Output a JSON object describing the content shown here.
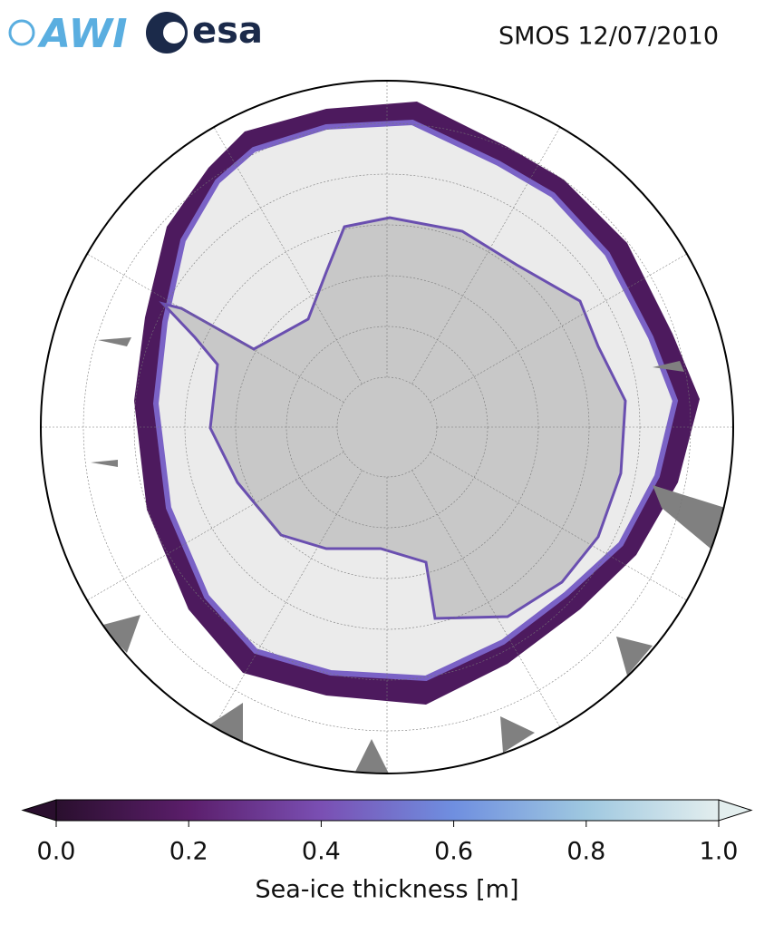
{
  "header": {
    "logos": [
      "AWI",
      "esa"
    ],
    "title": "SMOS 12/07/2010"
  },
  "colorbar": {
    "label": "Sea-ice thickness [m]",
    "lim": [
      0,
      1
    ],
    "ticks": [
      {
        "value": 0,
        "label": "0.0"
      },
      {
        "value": 0.2,
        "label": "0.2"
      },
      {
        "value": 0.4,
        "label": "0.4"
      },
      {
        "value": 0.6,
        "label": "0.6"
      },
      {
        "value": 0.8,
        "label": "0.8"
      },
      {
        "value": 1,
        "label": "1.0"
      }
    ],
    "colors": [
      "#2a0f2e",
      "#5b1e6b",
      "#7a4fb3",
      "#6f8fe0",
      "#9fc8e0",
      "#e3eeee"
    ]
  }
}
